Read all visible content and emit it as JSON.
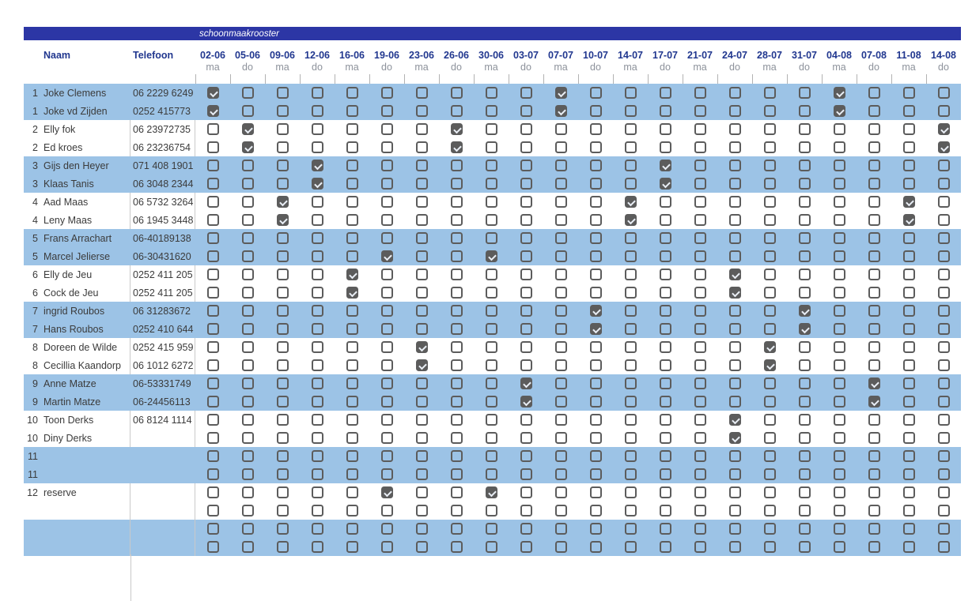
{
  "title_bar": {
    "label": "schoonmaakrooster"
  },
  "columns": {
    "name": "Naam",
    "phone": "Telefoon"
  },
  "date_columns": [
    {
      "date": "02-06",
      "day": "ma"
    },
    {
      "date": "05-06",
      "day": "do"
    },
    {
      "date": "09-06",
      "day": "ma"
    },
    {
      "date": "12-06",
      "day": "do"
    },
    {
      "date": "16-06",
      "day": "ma"
    },
    {
      "date": "19-06",
      "day": "do"
    },
    {
      "date": "23-06",
      "day": "ma"
    },
    {
      "date": "26-06",
      "day": "do"
    },
    {
      "date": "30-06",
      "day": "ma"
    },
    {
      "date": "03-07",
      "day": "do"
    },
    {
      "date": "07-07",
      "day": "ma"
    },
    {
      "date": "10-07",
      "day": "do"
    },
    {
      "date": "14-07",
      "day": "ma"
    },
    {
      "date": "17-07",
      "day": "do"
    },
    {
      "date": "21-07",
      "day": "ma"
    },
    {
      "date": "24-07",
      "day": "do"
    },
    {
      "date": "28-07",
      "day": "ma"
    },
    {
      "date": "31-07",
      "day": "do"
    },
    {
      "date": "04-08",
      "day": "ma"
    },
    {
      "date": "07-08",
      "day": "do"
    },
    {
      "date": "11-08",
      "day": "ma"
    },
    {
      "date": "14-08",
      "day": "do"
    }
  ],
  "rows": [
    {
      "num": "1",
      "name": "Joke Clemens",
      "phone": "06 2229 6249",
      "shade": "blue",
      "checked": [
        0,
        10,
        18
      ]
    },
    {
      "num": "1",
      "name": "Joke vd Zijden",
      "phone": "0252 415773",
      "shade": "blue",
      "checked": [
        0,
        10,
        18
      ]
    },
    {
      "num": "2",
      "name": "Elly fok",
      "phone": "06 23972735",
      "shade": "white",
      "checked": [
        1,
        7,
        21
      ]
    },
    {
      "num": "2",
      "name": "Ed kroes",
      "phone": "06 23236754",
      "shade": "white",
      "checked": [
        1,
        7,
        21
      ]
    },
    {
      "num": "3",
      "name": "Gijs den Heyer",
      "phone": "071 408 1901",
      "shade": "blue",
      "checked": [
        3,
        13
      ]
    },
    {
      "num": "3",
      "name": "Klaas Tanis",
      "phone": "06 3048 2344",
      "shade": "blue",
      "checked": [
        3,
        13
      ]
    },
    {
      "num": "4",
      "name": "Aad Maas",
      "phone": "06 5732 3264",
      "shade": "white",
      "checked": [
        2,
        12,
        20
      ]
    },
    {
      "num": "4",
      "name": "Leny Maas",
      "phone": "06 1945 3448",
      "shade": "white",
      "checked": [
        2,
        12,
        20
      ]
    },
    {
      "num": "5",
      "name": "Frans Arrachart",
      "phone": "06-40189138",
      "shade": "blue",
      "checked": []
    },
    {
      "num": "5",
      "name": "Marcel Jelierse",
      "phone": "06-30431620",
      "shade": "blue",
      "checked": [
        5,
        8
      ]
    },
    {
      "num": "6",
      "name": "Elly de Jeu",
      "phone": "0252 411 205",
      "shade": "white",
      "checked": [
        4,
        15
      ]
    },
    {
      "num": "6",
      "name": "Cock de Jeu",
      "phone": "0252 411 205",
      "shade": "white",
      "checked": [
        4,
        15
      ]
    },
    {
      "num": "7",
      "name": "ingrid Roubos",
      "phone": "06 31283672",
      "shade": "blue",
      "checked": [
        11,
        17
      ]
    },
    {
      "num": "7",
      "name": "Hans Roubos",
      "phone": "0252 410 644",
      "shade": "blue",
      "checked": [
        11,
        17
      ]
    },
    {
      "num": "8",
      "name": "Doreen de Wilde",
      "phone": "0252 415 959",
      "shade": "white",
      "checked": [
        6,
        16
      ]
    },
    {
      "num": "8",
      "name": "Cecillia Kaandorp",
      "phone": "06 1012 6272",
      "shade": "white",
      "checked": [
        6,
        16
      ]
    },
    {
      "num": "9",
      "name": "Anne Matze",
      "phone": "06-53331749",
      "shade": "blue",
      "checked": [
        9,
        19
      ]
    },
    {
      "num": "9",
      "name": "Martin Matze",
      "phone": "06-24456113",
      "shade": "blue",
      "checked": [
        9,
        19
      ]
    },
    {
      "num": "10",
      "name": "Toon Derks",
      "phone": "06 8124 1114",
      "shade": "white",
      "checked": [
        15
      ]
    },
    {
      "num": "10",
      "name": "Diny Derks",
      "phone": "",
      "shade": "white",
      "checked": [
        15
      ]
    },
    {
      "num": "11",
      "name": "",
      "phone": "",
      "shade": "blue",
      "checked": []
    },
    {
      "num": "11",
      "name": "",
      "phone": "",
      "shade": "blue",
      "checked": []
    },
    {
      "num": "12",
      "name": "reserve",
      "phone": "",
      "shade": "white",
      "checked": [
        5,
        8
      ]
    },
    {
      "num": "",
      "name": "",
      "phone": "",
      "shade": "white",
      "checked": []
    },
    {
      "num": "",
      "name": "",
      "phone": "",
      "shade": "blue",
      "checked": []
    },
    {
      "num": "",
      "name": "",
      "phone": "",
      "shade": "blue",
      "checked": []
    }
  ],
  "colors": {
    "title_bar_bg": "#2c36a5",
    "header_text": "#21378f",
    "day_text": "#8d929b",
    "row_blue": "#9cc3e6",
    "checkbox": "#5c5c5c",
    "body_text": "#3b3b3b"
  }
}
